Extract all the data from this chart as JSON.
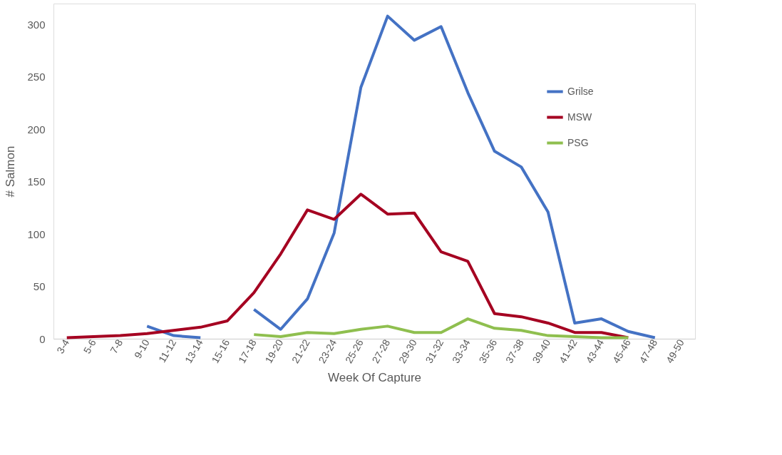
{
  "chart_data": {
    "type": "line",
    "xlabel": "Week Of Capture",
    "ylabel": "# Salmon",
    "categories": [
      "3-4",
      "5-6",
      "7-8",
      "9-10",
      "11-12",
      "13-14",
      "15-16",
      "17-18",
      "19-20",
      "21-22",
      "23-24",
      "25-26",
      "27-28",
      "29-30",
      "31-32",
      "33-34",
      "35-36",
      "37-38",
      "39-40",
      "41-42",
      "43-44",
      "45-46",
      "47-48",
      "49-50"
    ],
    "series": [
      {
        "name": "Grilse",
        "color": "#4472c4",
        "values": [
          null,
          null,
          null,
          12,
          3,
          1,
          null,
          28,
          9,
          38,
          101,
          240,
          308,
          285,
          298,
          235,
          179,
          164,
          121,
          15,
          19,
          7,
          1,
          null
        ]
      },
      {
        "name": "MSW",
        "color": "#a50021",
        "values": [
          1,
          2,
          3,
          5,
          8,
          11,
          17,
          44,
          81,
          123,
          114,
          138,
          119,
          120,
          83,
          74,
          24,
          21,
          15,
          6,
          6,
          1,
          null,
          null
        ]
      },
      {
        "name": "PSG",
        "color": "#8fbf4f",
        "values": [
          null,
          null,
          null,
          null,
          null,
          null,
          null,
          4,
          2,
          6,
          5,
          9,
          12,
          6,
          6,
          19,
          10,
          8,
          3,
          2,
          1,
          1,
          null,
          null
        ]
      }
    ],
    "ylim": [
      0,
      320
    ],
    "yticks": [
      0,
      50,
      100,
      150,
      200,
      250,
      300
    ],
    "grid": false,
    "legend": "top right",
    "marker": "none",
    "line_style": "solid"
  }
}
